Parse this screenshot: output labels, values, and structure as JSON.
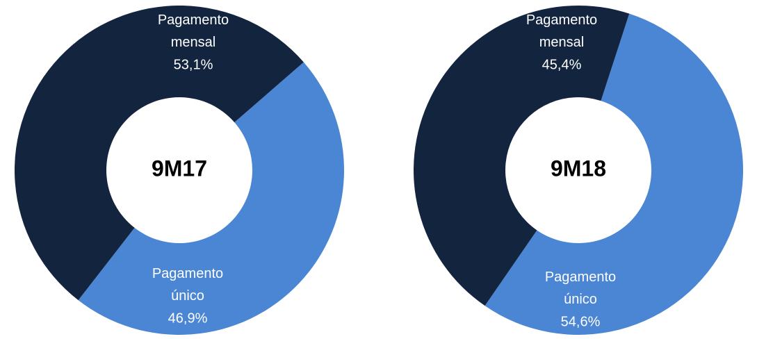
{
  "chart_data": [
    {
      "type": "donut",
      "title": "9M17",
      "categories": [
        "Pagamento mensal",
        "Pagamento único"
      ],
      "values": [
        53.1,
        46.9
      ],
      "value_labels": [
        "53,1%",
        "46,9%"
      ],
      "colors": [
        "#13243f",
        "#4a86d4"
      ]
    },
    {
      "type": "donut",
      "title": "9M18",
      "categories": [
        "Pagamento mensal",
        "Pagamento único"
      ],
      "values": [
        45.4,
        54.6
      ],
      "value_labels": [
        "45,4%",
        "54,6%"
      ],
      "colors": [
        "#13243f",
        "#4a86d4"
      ]
    }
  ]
}
